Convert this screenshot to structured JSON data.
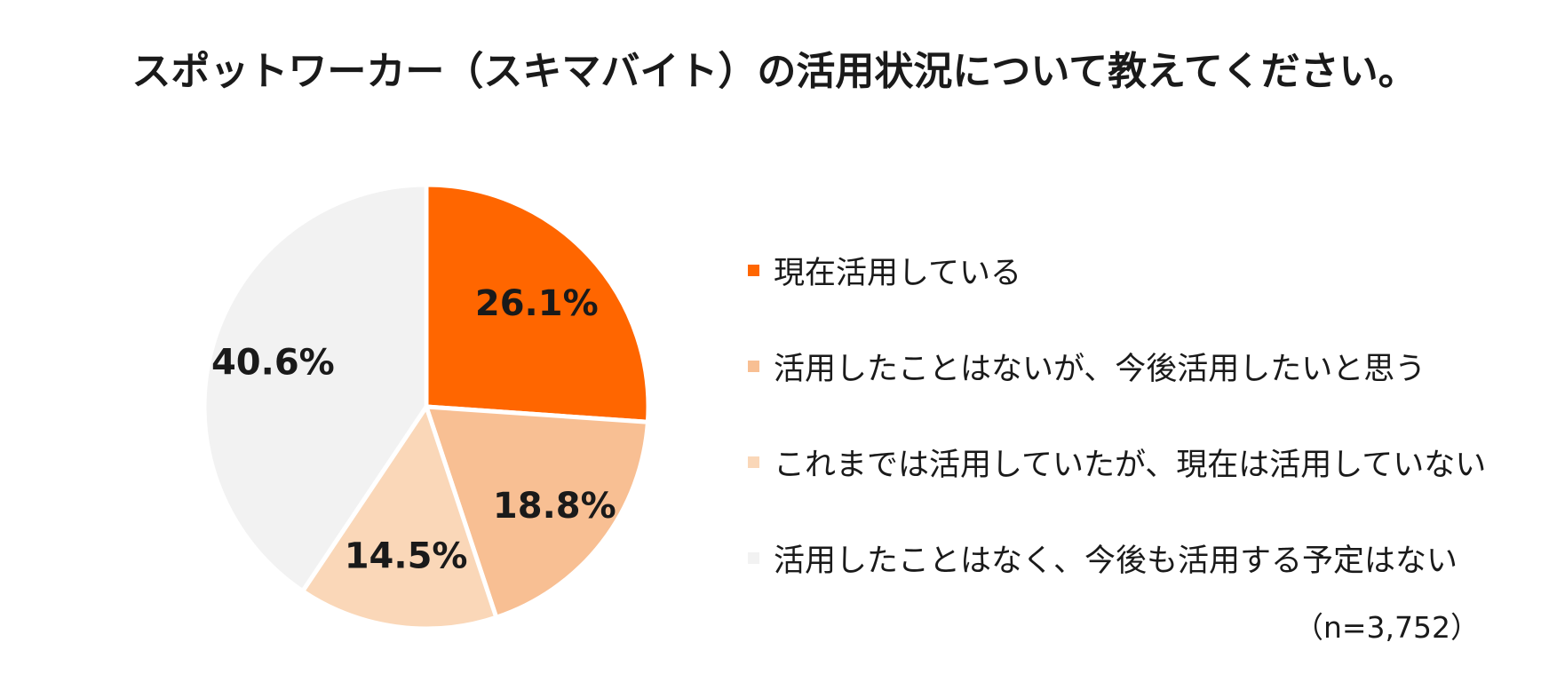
{
  "chart_data": {
    "type": "pie",
    "title": "スポットワーカー（スキマバイト）の活用状況について教えてください。",
    "categories": [
      "現在活用している",
      "活用したことはないが、今後活用したいと思う",
      "これまでは活用していたが、現在は活用していない",
      "活用したことはなく、今後も活用する予定はない"
    ],
    "values": [
      26.1,
      18.8,
      14.5,
      40.6
    ],
    "value_labels": [
      "26.1%",
      "18.8%",
      "14.5%",
      "40.6%"
    ],
    "colors": [
      "#ff6600",
      "#f8bf93",
      "#fad7b8",
      "#f2f2f2"
    ],
    "legend_position": "right",
    "note": "（n=3,752）"
  }
}
